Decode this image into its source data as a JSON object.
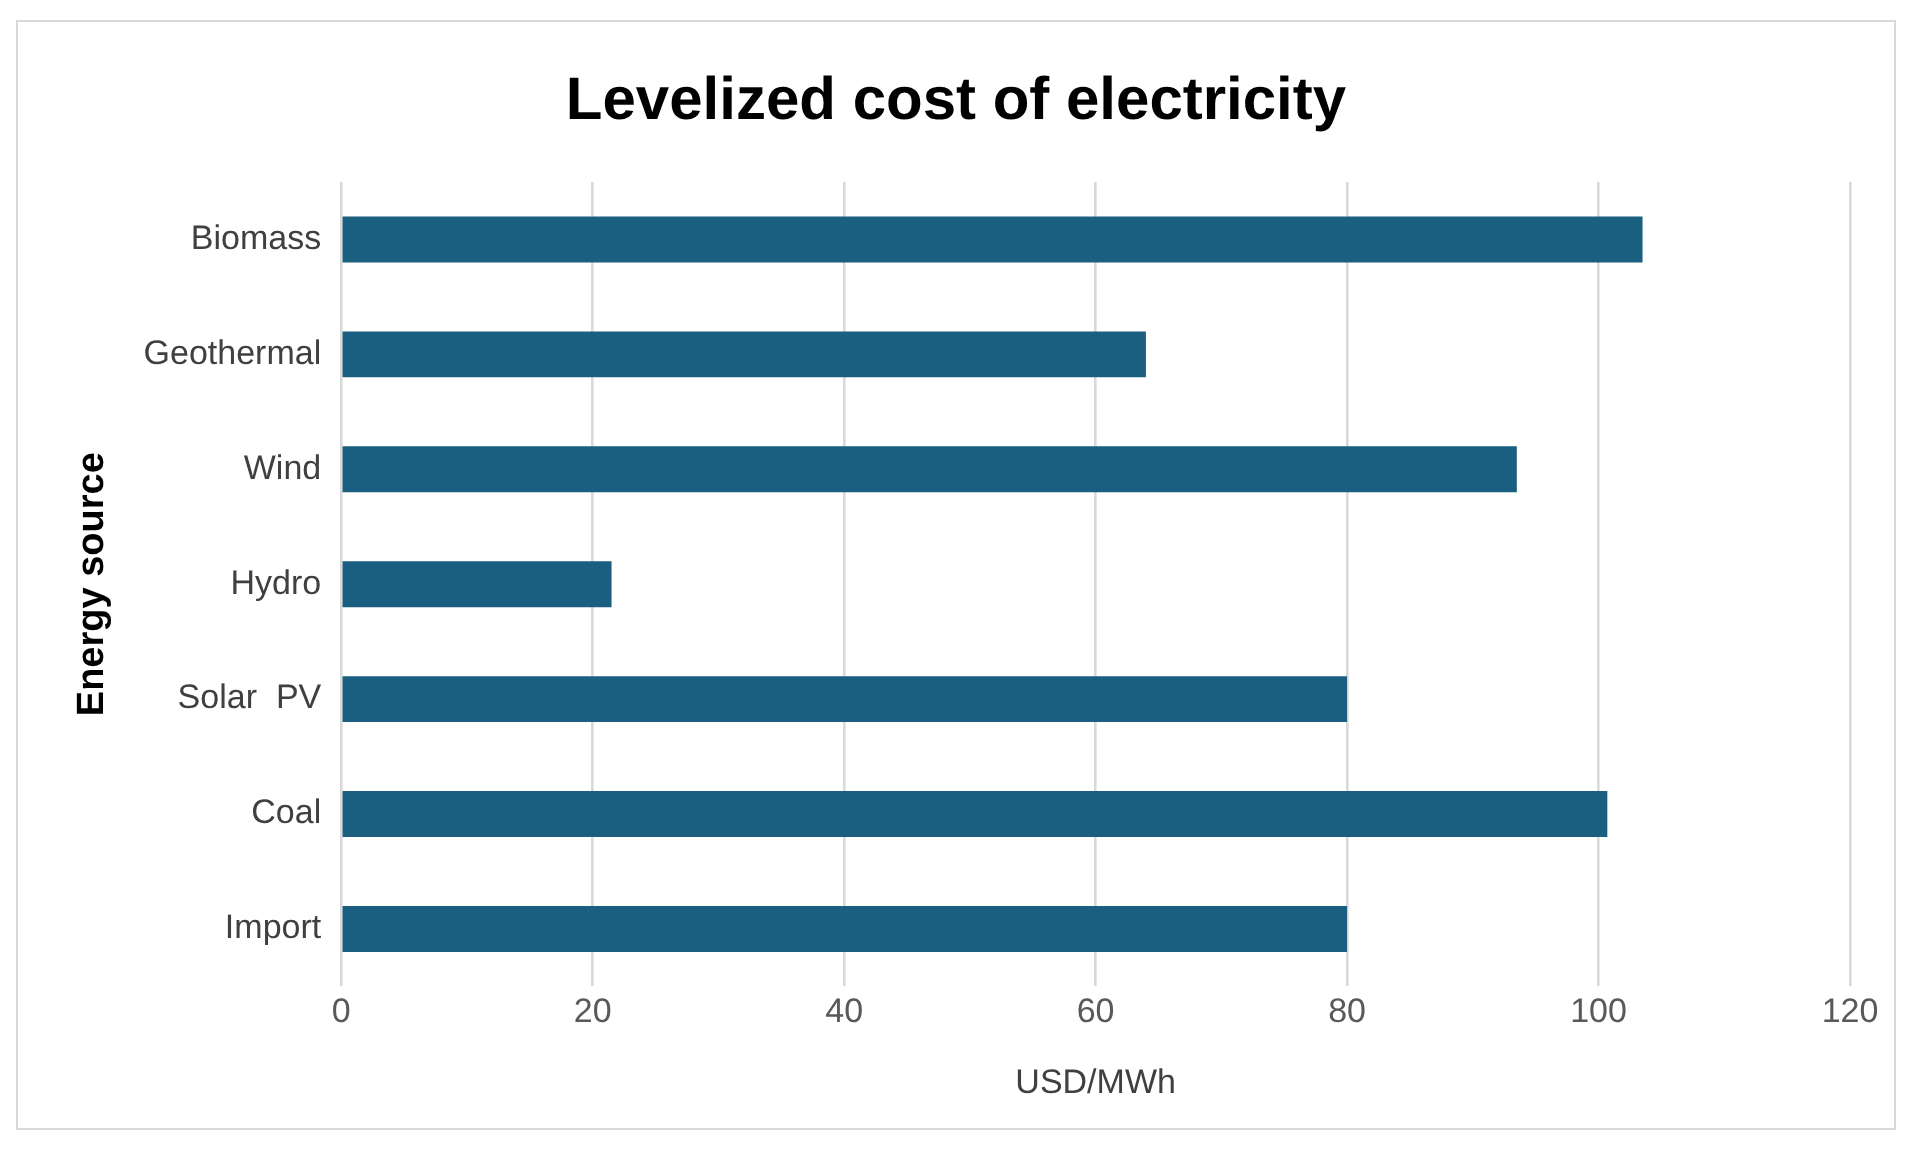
{
  "chart_data": {
    "type": "bar",
    "orientation": "horizontal",
    "title": "Levelized cost of electricity",
    "xlabel": "USD/MWh",
    "ylabel": "Energy source",
    "categories": [
      "Biomass",
      "Geothermal",
      "Wind",
      "Hydro",
      "Solar  PV",
      "Coal",
      "Import"
    ],
    "values": [
      103.5,
      64,
      93.5,
      21.5,
      80,
      100.7,
      80
    ],
    "color": "#1a5f80",
    "xlim": [
      0,
      120
    ],
    "xticks": [
      0,
      20,
      40,
      60,
      80,
      100,
      120
    ],
    "grid": "x",
    "legend": false
  }
}
